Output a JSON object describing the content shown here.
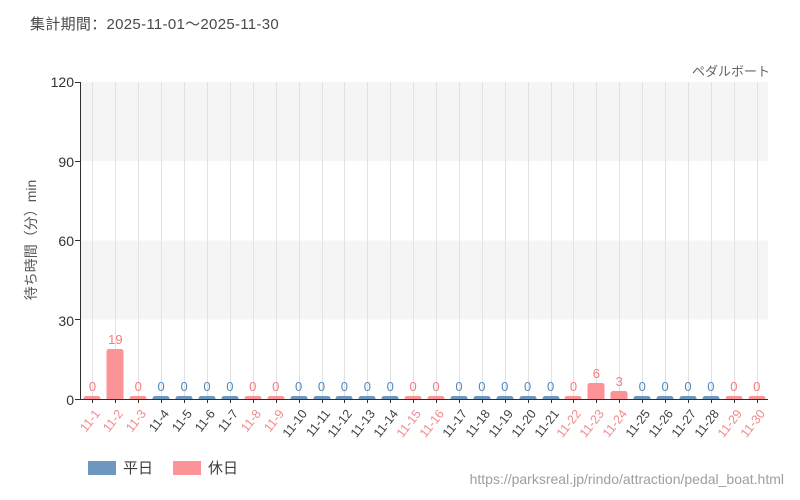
{
  "header": {
    "title": "集計期間：2025-11-01～2025-11-30"
  },
  "chart": {
    "series_label": "ペダルボート",
    "y_axis_title": "待ち時間（分）min"
  },
  "legend": {
    "items": [
      {
        "label": "平日",
        "series": "weekday",
        "color": "#6d97bf"
      },
      {
        "label": "休日",
        "series": "holiday",
        "color": "#fc9397"
      }
    ]
  },
  "footer": {
    "url": "https://parksreal.jp/rindo/attraction/pedal_boat.html"
  },
  "colors": {
    "band_gray": "#f5f5f5",
    "gridline": "#e2e2e2",
    "axis_spine": "#2f2f2f",
    "weekday_bar": "#6d97bf",
    "holiday_bar": "#fc9397",
    "weekday_value_label": "#5289bd",
    "holiday_value_label": "#f8797d",
    "weekday_axis_label": "#3f3f3f",
    "holiday_axis_label": "#f2898c"
  },
  "chart_data": {
    "type": "bar",
    "title": "ペダルボート",
    "xlabel": "",
    "ylabel": "待ち時間（分）min",
    "ylim": [
      0,
      120
    ],
    "yticks": [
      0,
      30,
      60,
      90,
      120
    ],
    "grid": "horizontal-bands-and-vertical-lines",
    "legend_position": "bottom-left",
    "value_labels_shown": true,
    "categories": [
      "11-1",
      "11-2",
      "11-3",
      "11-4",
      "11-5",
      "11-6",
      "11-7",
      "11-8",
      "11-9",
      "11-10",
      "11-11",
      "11-12",
      "11-13",
      "11-14",
      "11-15",
      "11-16",
      "11-17",
      "11-18",
      "11-19",
      "11-20",
      "11-21",
      "11-22",
      "11-23",
      "11-24",
      "11-25",
      "11-26",
      "11-27",
      "11-28",
      "11-29",
      "11-30"
    ],
    "days": [
      {
        "label": "11-1",
        "type": "holiday",
        "value": 0
      },
      {
        "label": "11-2",
        "type": "holiday",
        "value": 19
      },
      {
        "label": "11-3",
        "type": "holiday",
        "value": 0
      },
      {
        "label": "11-4",
        "type": "weekday",
        "value": 0
      },
      {
        "label": "11-5",
        "type": "weekday",
        "value": 0
      },
      {
        "label": "11-6",
        "type": "weekday",
        "value": 0
      },
      {
        "label": "11-7",
        "type": "weekday",
        "value": 0
      },
      {
        "label": "11-8",
        "type": "holiday",
        "value": 0
      },
      {
        "label": "11-9",
        "type": "holiday",
        "value": 0
      },
      {
        "label": "11-10",
        "type": "weekday",
        "value": 0
      },
      {
        "label": "11-11",
        "type": "weekday",
        "value": 0
      },
      {
        "label": "11-12",
        "type": "weekday",
        "value": 0
      },
      {
        "label": "11-13",
        "type": "weekday",
        "value": 0
      },
      {
        "label": "11-14",
        "type": "weekday",
        "value": 0
      },
      {
        "label": "11-15",
        "type": "holiday",
        "value": 0
      },
      {
        "label": "11-16",
        "type": "holiday",
        "value": 0
      },
      {
        "label": "11-17",
        "type": "weekday",
        "value": 0
      },
      {
        "label": "11-18",
        "type": "weekday",
        "value": 0
      },
      {
        "label": "11-19",
        "type": "weekday",
        "value": 0
      },
      {
        "label": "11-20",
        "type": "weekday",
        "value": 0
      },
      {
        "label": "11-21",
        "type": "weekday",
        "value": 0
      },
      {
        "label": "11-22",
        "type": "holiday",
        "value": 0
      },
      {
        "label": "11-23",
        "type": "holiday",
        "value": 6
      },
      {
        "label": "11-24",
        "type": "holiday",
        "value": 3
      },
      {
        "label": "11-25",
        "type": "weekday",
        "value": 0
      },
      {
        "label": "11-26",
        "type": "weekday",
        "value": 0
      },
      {
        "label": "11-27",
        "type": "weekday",
        "value": 0
      },
      {
        "label": "11-28",
        "type": "weekday",
        "value": 0
      },
      {
        "label": "11-29",
        "type": "holiday",
        "value": 0
      },
      {
        "label": "11-30",
        "type": "holiday",
        "value": 0
      }
    ]
  }
}
